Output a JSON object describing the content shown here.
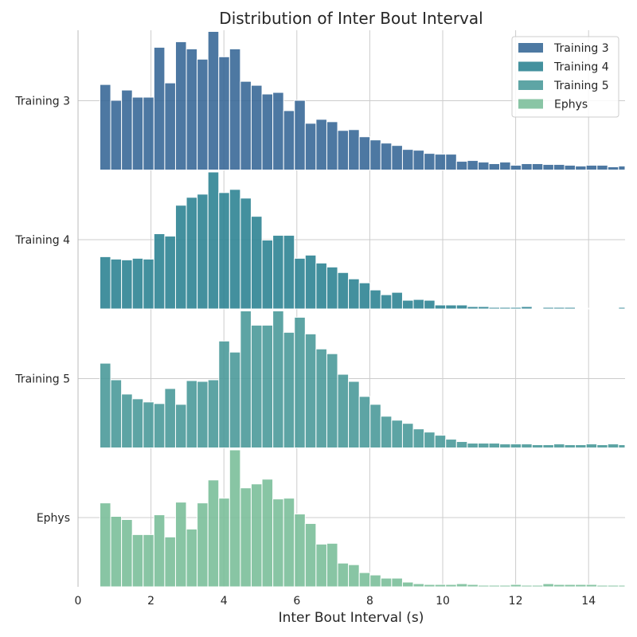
{
  "chart_data": {
    "type": "bar",
    "title": "Distribution of Inter Bout Interval",
    "xlabel": "Inter Bout Interval (s)",
    "ylabel": "",
    "xlim": [
      0,
      15
    ],
    "xticks": [
      0,
      2,
      4,
      6,
      8,
      10,
      12,
      14
    ],
    "grid": true,
    "legend_position": "top-right",
    "bin_start": 0.6,
    "bin_width": 0.2963,
    "bar_opacity": 0.9,
    "series": [
      {
        "name": "Training 3",
        "color": "#3a6a98",
        "values": [
          108,
          88,
          101,
          92,
          92,
          155,
          110,
          162,
          153,
          140,
          175,
          143,
          153,
          112,
          107,
          96,
          98,
          75,
          88,
          59,
          64,
          61,
          50,
          51,
          42,
          38,
          34,
          31,
          26,
          25,
          21,
          20,
          20,
          11,
          12,
          10,
          8,
          10,
          6,
          8,
          8,
          7,
          7,
          6,
          5,
          6,
          6,
          4,
          5
        ]
      },
      {
        "name": "Training 4",
        "color": "#2f8594",
        "values": [
          66,
          63,
          62,
          64,
          63,
          95,
          92,
          131,
          141,
          145,
          173,
          147,
          151,
          140,
          117,
          87,
          93,
          93,
          64,
          68,
          58,
          53,
          46,
          38,
          33,
          24,
          18,
          21,
          11,
          12,
          11,
          5,
          5,
          5,
          3,
          3,
          2,
          2,
          2,
          3,
          1,
          2,
          2,
          2,
          1,
          1,
          1,
          1,
          2
        ]
      },
      {
        "name": "Training 5",
        "color": "#4c9b9b",
        "values": [
          107,
          86,
          68,
          62,
          58,
          56,
          75,
          55,
          85,
          84,
          86,
          135,
          121,
          173,
          155,
          155,
          173,
          146,
          165,
          144,
          125,
          119,
          93,
          84,
          65,
          55,
          40,
          35,
          31,
          24,
          20,
          16,
          11,
          8,
          6,
          6,
          6,
          5,
          5,
          5,
          4,
          4,
          5,
          4,
          4,
          5,
          4,
          5,
          4
        ]
      },
      {
        "name": "Ephys",
        "color": "#7cbf9b",
        "values": [
          106,
          89,
          85,
          66,
          66,
          91,
          63,
          107,
          73,
          106,
          135,
          112,
          173,
          125,
          130,
          136,
          111,
          112,
          92,
          80,
          54,
          55,
          30,
          28,
          18,
          15,
          11,
          11,
          6,
          4,
          3,
          3,
          3,
          4,
          3,
          2,
          2,
          2,
          3,
          2,
          2,
          4,
          3,
          3,
          3,
          3,
          2,
          2,
          2
        ]
      }
    ]
  }
}
